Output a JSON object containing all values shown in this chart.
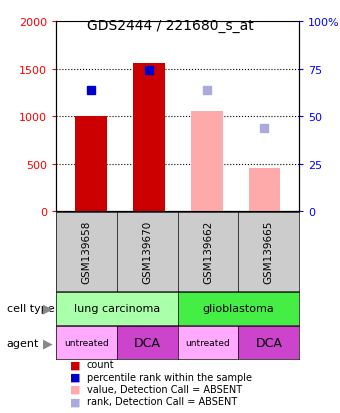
{
  "title": "GDS2444 / 221680_s_at",
  "samples": [
    "GSM139658",
    "GSM139670",
    "GSM139662",
    "GSM139665"
  ],
  "bar_values": [
    1000,
    1560,
    1050,
    450
  ],
  "bar_colors": [
    "#cc0000",
    "#cc0000",
    "#ffaaaa",
    "#ffaaaa"
  ],
  "dot_values_present": [
    1280,
    1490,
    null,
    null
  ],
  "dot_color_present": "#0000cc",
  "dot_values_absent": [
    null,
    null,
    1280,
    880
  ],
  "dot_color_absent": "#aaaadd",
  "ylim_left": [
    0,
    2000
  ],
  "ylim_right": [
    0,
    100
  ],
  "yticks_left": [
    0,
    500,
    1000,
    1500,
    2000
  ],
  "yticks_right": [
    0,
    25,
    50,
    75,
    100
  ],
  "ytick_labels_right": [
    "0",
    "25",
    "50",
    "75",
    "100%"
  ],
  "cell_types": [
    [
      "lung carcinoma",
      0,
      2
    ],
    [
      "glioblastoma",
      2,
      4
    ]
  ],
  "cell_type_colors": [
    "#aaffaa",
    "#44ee44"
  ],
  "agents": [
    "untreated",
    "DCA",
    "untreated",
    "DCA"
  ],
  "agent_colors": [
    "#ffaaff",
    "#cc44cc",
    "#ffaaff",
    "#cc44cc"
  ],
  "legend_colors": [
    "#cc0000",
    "#0000cc",
    "#ffaaaa",
    "#aaaadd"
  ],
  "legend_labels": [
    "count",
    "percentile rank within the sample",
    "value, Detection Call = ABSENT",
    "rank, Detection Call = ABSENT"
  ],
  "bar_width": 0.55
}
